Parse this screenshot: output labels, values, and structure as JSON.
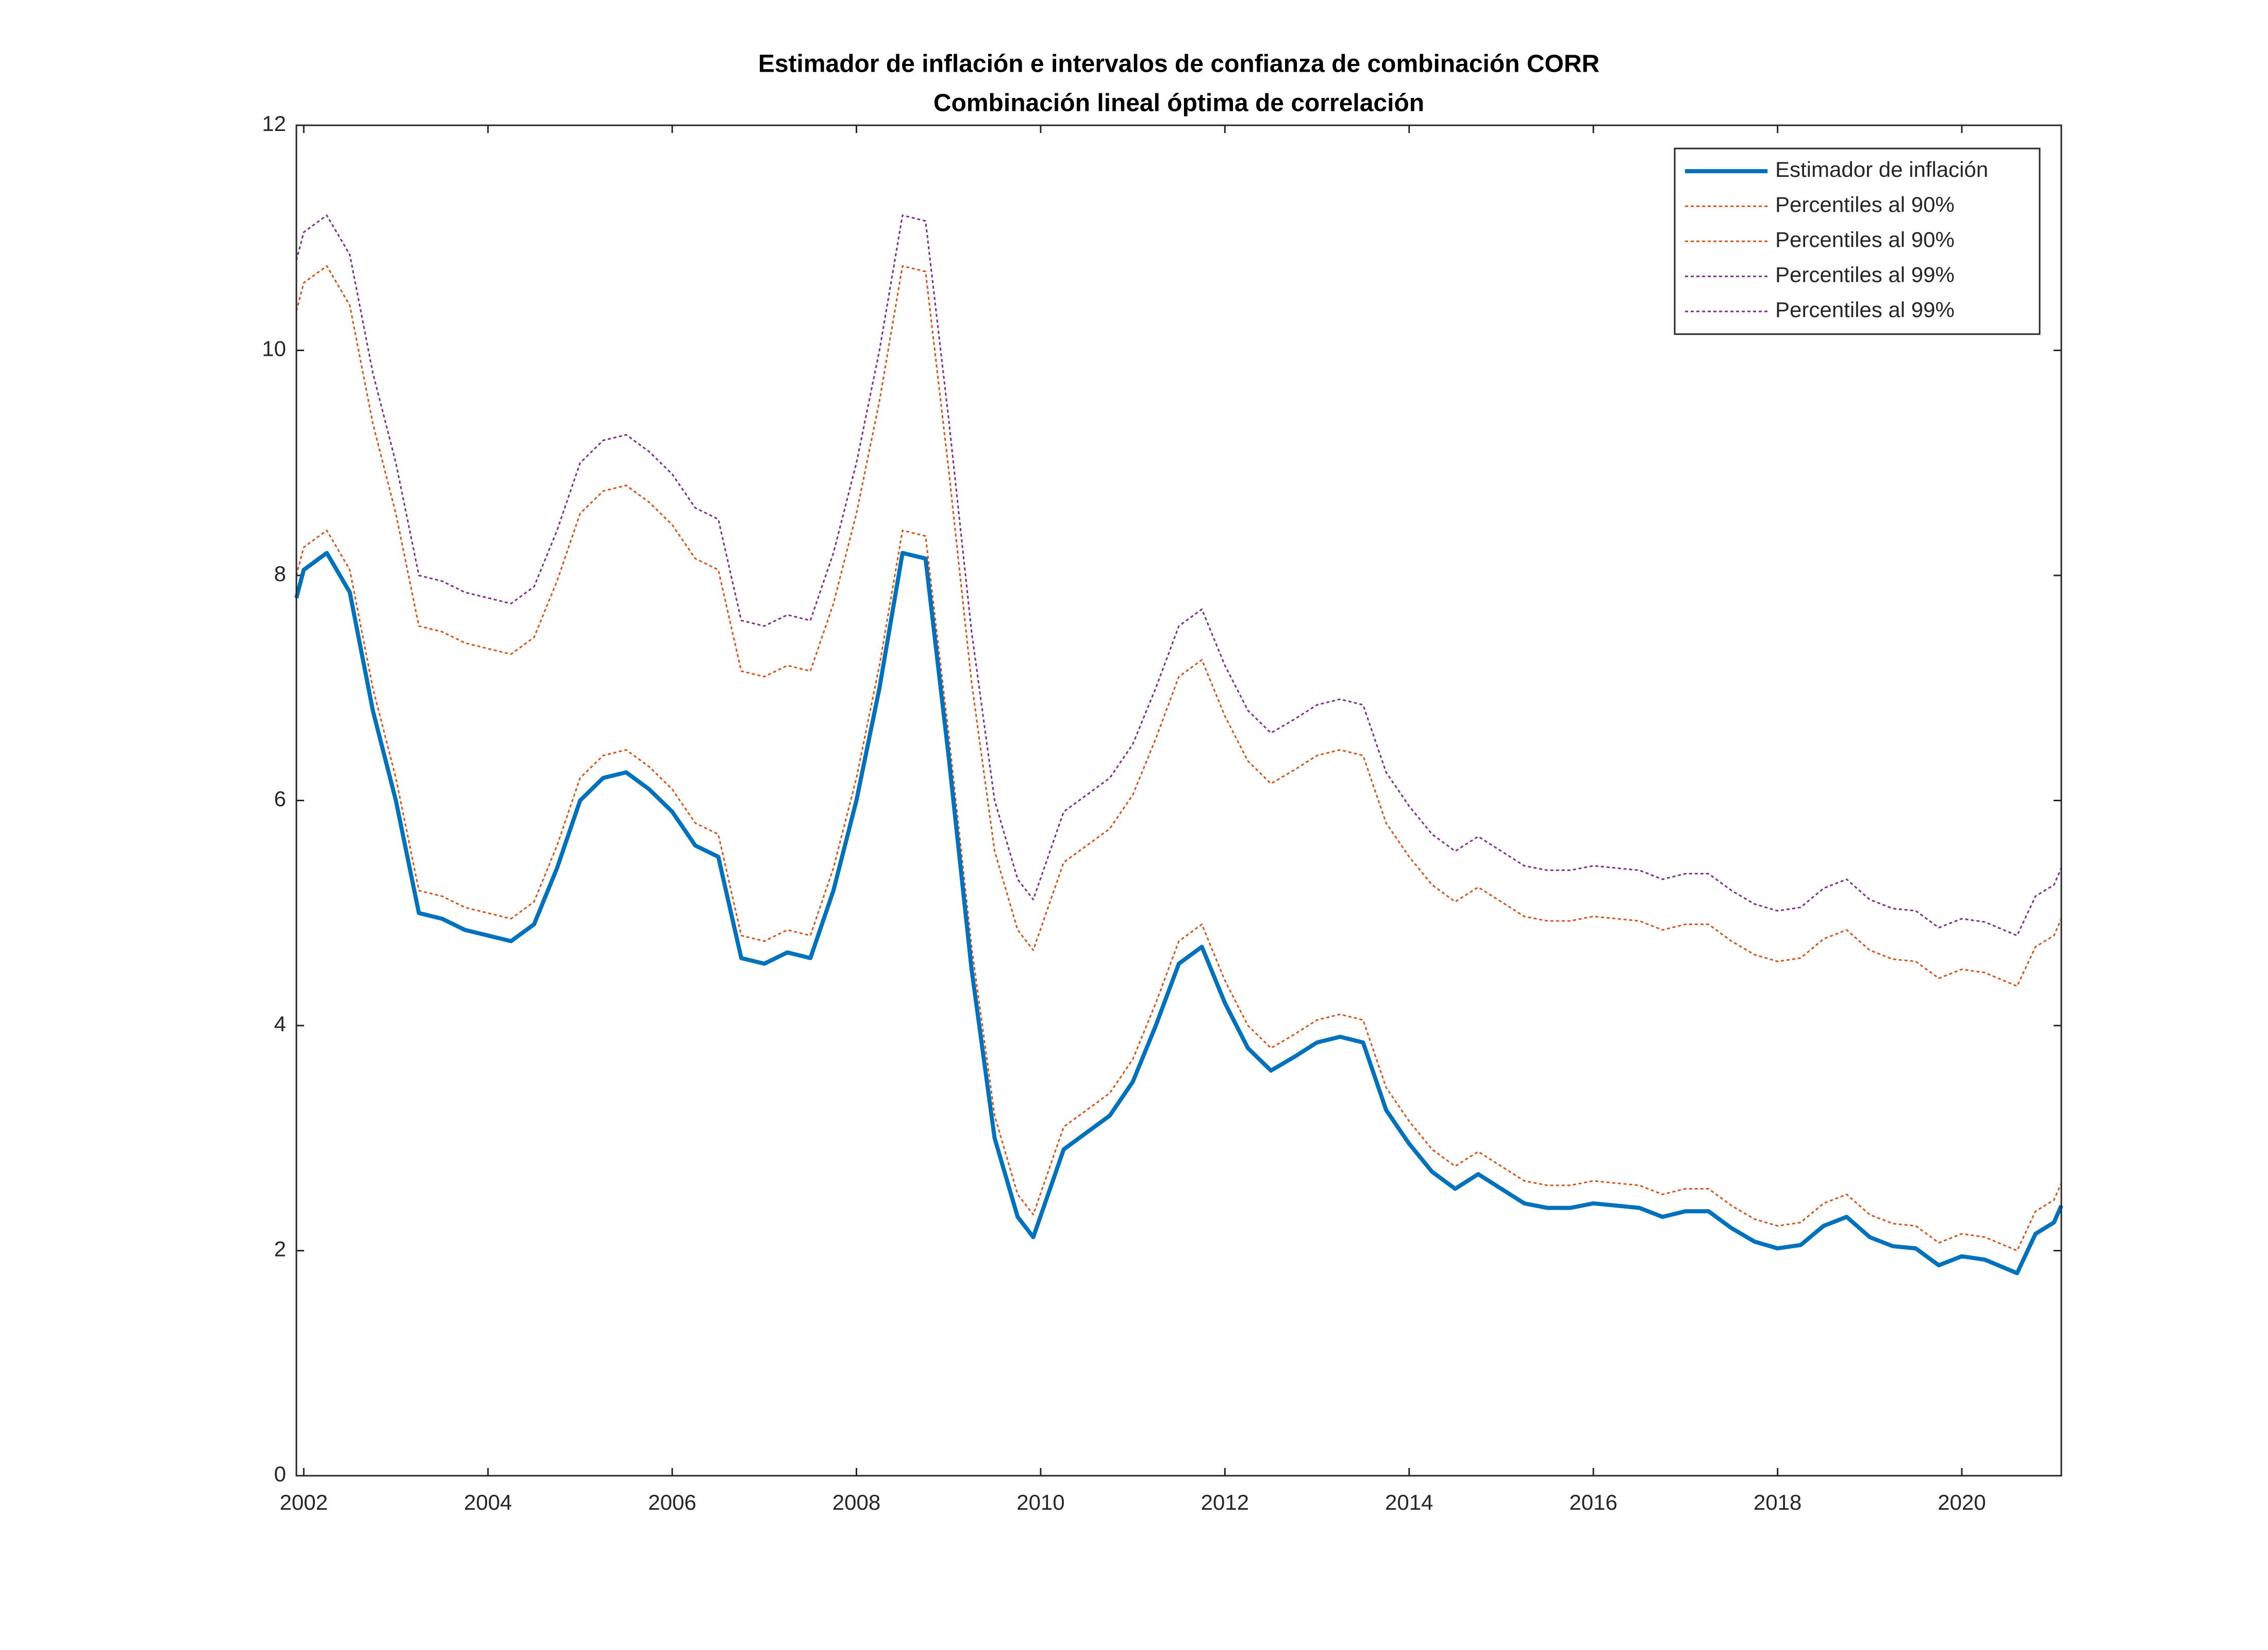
{
  "chart_data": {
    "type": "line",
    "title": "Estimador de inflación e intervalos de confianza de combinación CORR",
    "subtitle": "Combinación lineal óptima de correlación",
    "x": [
      2001.92,
      2002,
      2002.25,
      2002.5,
      2002.75,
      2003,
      2003.25,
      2003.5,
      2003.75,
      2004,
      2004.25,
      2004.5,
      2004.75,
      2005,
      2005.25,
      2005.5,
      2005.75,
      2006,
      2006.25,
      2006.5,
      2006.75,
      2007,
      2007.25,
      2007.5,
      2007.75,
      2008,
      2008.25,
      2008.5,
      2008.75,
      2009,
      2009.25,
      2009.5,
      2009.75,
      2009.92,
      2010.25,
      2010.5,
      2010.75,
      2011,
      2011.25,
      2011.5,
      2011.75,
      2012,
      2012.25,
      2012.5,
      2012.75,
      2013,
      2013.25,
      2013.5,
      2013.75,
      2014,
      2014.25,
      2014.5,
      2014.75,
      2015,
      2015.25,
      2015.5,
      2015.75,
      2016,
      2016.25,
      2016.5,
      2016.75,
      2017,
      2017.25,
      2017.5,
      2017.75,
      2018,
      2018.25,
      2018.5,
      2018.75,
      2019,
      2019.25,
      2019.5,
      2019.75,
      2020,
      2020.25,
      2020.6,
      2020.8,
      2021,
      2021.08
    ],
    "series": [
      {
        "name": "Estimador de inflación",
        "color": "#0072bd",
        "style": "solid",
        "values": [
          7.8,
          8.05,
          8.2,
          7.85,
          6.8,
          6.0,
          5.0,
          4.95,
          4.85,
          4.8,
          4.75,
          4.9,
          5.4,
          6.0,
          6.2,
          6.25,
          6.1,
          5.9,
          5.6,
          5.5,
          4.6,
          4.55,
          4.65,
          4.6,
          5.2,
          6.0,
          7.0,
          8.2,
          8.15,
          6.4,
          4.5,
          3.0,
          2.3,
          2.12,
          2.9,
          3.05,
          3.2,
          3.5,
          4.0,
          4.55,
          4.7,
          4.2,
          3.8,
          3.6,
          3.72,
          3.85,
          3.9,
          3.85,
          3.25,
          2.95,
          2.7,
          2.55,
          2.68,
          2.55,
          2.42,
          2.38,
          2.38,
          2.42,
          2.4,
          2.38,
          2.3,
          2.35,
          2.35,
          2.2,
          2.08,
          2.02,
          2.05,
          2.22,
          2.3,
          2.12,
          2.04,
          2.02,
          1.87,
          1.95,
          1.92,
          1.8,
          2.15,
          2.25,
          2.4
        ]
      },
      {
        "name": "Percentiles al 90%",
        "color": "#d95319",
        "style": "dotted",
        "values": [
          8.0,
          8.25,
          8.4,
          8.05,
          7.0,
          6.2,
          5.2,
          5.15,
          5.05,
          5.0,
          4.95,
          5.1,
          5.6,
          6.2,
          6.4,
          6.45,
          6.3,
          6.1,
          5.8,
          5.7,
          4.8,
          4.75,
          4.85,
          4.8,
          5.4,
          6.2,
          7.2,
          8.4,
          8.35,
          6.6,
          4.7,
          3.2,
          2.5,
          2.32,
          3.1,
          3.25,
          3.4,
          3.7,
          4.2,
          4.75,
          4.9,
          4.4,
          4.0,
          3.8,
          3.92,
          4.05,
          4.1,
          4.05,
          3.45,
          3.15,
          2.9,
          2.75,
          2.88,
          2.75,
          2.62,
          2.58,
          2.58,
          2.62,
          2.6,
          2.58,
          2.5,
          2.55,
          2.55,
          2.4,
          2.28,
          2.22,
          2.25,
          2.42,
          2.5,
          2.32,
          2.24,
          2.22,
          2.07,
          2.15,
          2.12,
          2.0,
          2.35,
          2.45,
          2.6
        ]
      },
      {
        "name": "Percentiles al 90%",
        "color": "#d95319",
        "style": "dotted",
        "values": [
          10.35,
          10.6,
          10.75,
          10.4,
          9.35,
          8.55,
          7.55,
          7.5,
          7.4,
          7.35,
          7.3,
          7.45,
          7.95,
          8.55,
          8.75,
          8.8,
          8.65,
          8.45,
          8.15,
          8.05,
          7.15,
          7.1,
          7.2,
          7.15,
          7.75,
          8.55,
          9.55,
          10.75,
          10.7,
          8.95,
          7.05,
          5.55,
          4.85,
          4.67,
          5.45,
          5.6,
          5.75,
          6.05,
          6.55,
          7.1,
          7.25,
          6.75,
          6.35,
          6.15,
          6.27,
          6.4,
          6.45,
          6.4,
          5.8,
          5.5,
          5.25,
          5.1,
          5.23,
          5.1,
          4.97,
          4.93,
          4.93,
          4.97,
          4.95,
          4.93,
          4.85,
          4.9,
          4.9,
          4.75,
          4.63,
          4.57,
          4.6,
          4.77,
          4.85,
          4.67,
          4.59,
          4.57,
          4.42,
          4.5,
          4.47,
          4.35,
          4.7,
          4.8,
          4.95
        ]
      },
      {
        "name": "Percentiles al 99%",
        "color": "#7e2f8e",
        "style": "dotted",
        "values": [
          7.8,
          8.05,
          8.2,
          7.85,
          6.8,
          6.0,
          5.0,
          4.95,
          4.85,
          4.8,
          4.75,
          4.9,
          5.4,
          6.0,
          6.2,
          6.25,
          6.1,
          5.9,
          5.6,
          5.5,
          4.6,
          4.55,
          4.65,
          4.6,
          5.2,
          6.0,
          7.0,
          8.2,
          8.15,
          6.4,
          4.5,
          3.0,
          2.3,
          2.12,
          2.9,
          3.05,
          3.2,
          3.5,
          4.0,
          4.55,
          4.7,
          4.2,
          3.8,
          3.6,
          3.72,
          3.85,
          3.9,
          3.85,
          3.25,
          2.95,
          2.7,
          2.55,
          2.68,
          2.55,
          2.42,
          2.38,
          2.38,
          2.42,
          2.4,
          2.38,
          2.3,
          2.35,
          2.35,
          2.2,
          2.08,
          2.02,
          2.05,
          2.22,
          2.3,
          2.12,
          2.04,
          2.02,
          1.87,
          1.95,
          1.92,
          1.8,
          2.15,
          2.25,
          2.4
        ]
      },
      {
        "name": "Percentiles al 99%",
        "color": "#7e2f8e",
        "style": "dotted",
        "values": [
          10.8,
          11.05,
          11.2,
          10.85,
          9.8,
          9.0,
          8.0,
          7.95,
          7.85,
          7.8,
          7.75,
          7.9,
          8.4,
          9.0,
          9.2,
          9.25,
          9.1,
          8.9,
          8.6,
          8.5,
          7.6,
          7.55,
          7.65,
          7.6,
          8.2,
          9.0,
          10.0,
          11.2,
          11.15,
          9.4,
          7.5,
          6.0,
          5.3,
          5.12,
          5.9,
          6.05,
          6.2,
          6.5,
          7.0,
          7.55,
          7.7,
          7.2,
          6.8,
          6.6,
          6.72,
          6.85,
          6.9,
          6.85,
          6.25,
          5.95,
          5.7,
          5.55,
          5.68,
          5.55,
          5.42,
          5.38,
          5.38,
          5.42,
          5.4,
          5.38,
          5.3,
          5.35,
          5.35,
          5.2,
          5.08,
          5.02,
          5.05,
          5.22,
          5.3,
          5.12,
          5.04,
          5.02,
          4.87,
          4.95,
          4.92,
          4.8,
          5.15,
          5.25,
          5.4
        ]
      }
    ],
    "xlim": [
      2001.92,
      2021.08
    ],
    "xticks": [
      2002,
      2004,
      2006,
      2008,
      2010,
      2012,
      2014,
      2016,
      2018,
      2020
    ],
    "ylim": [
      0,
      12
    ],
    "yticks": [
      0,
      2,
      4,
      6,
      8,
      10,
      12
    ],
    "grid": false,
    "legend": "northeast"
  }
}
